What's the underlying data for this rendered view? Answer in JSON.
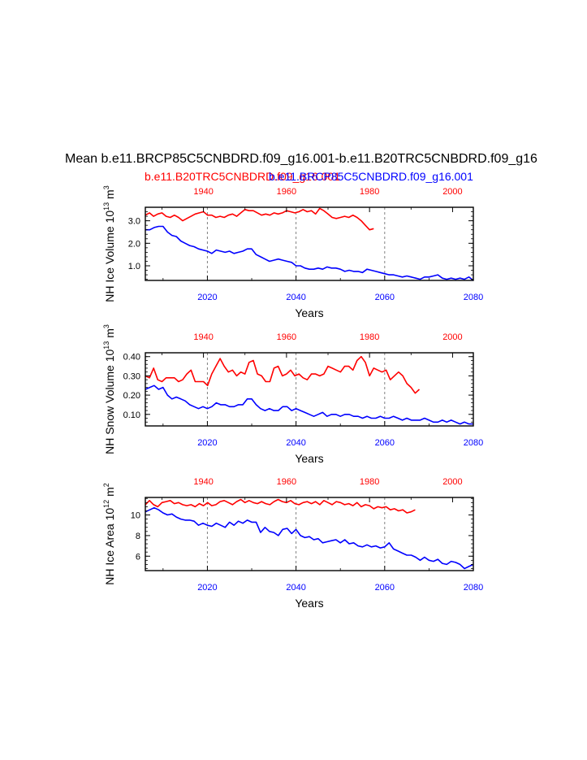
{
  "title": "Mean b.e11.BRCP85C5CNBDRD.f09_g16.001-b.e11.B20TRC5CNBDRD.f09_g16",
  "legend": {
    "red_label": "b.e11.B20TRC5CNBDRD.f09_g16.001",
    "blue_label": "b.e11.BRCP85C5CNBDRD.f09_g16.001"
  },
  "colors": {
    "red": "#ff0000",
    "blue": "#0000ff",
    "axis": "#000000",
    "refline": "#808080"
  },
  "chart_data": [
    {
      "type": "line",
      "ylabel": "NH Ice Volume",
      "ylabel_factor": "10",
      "ylabel_exp": "13",
      "ylabel_unit": "m",
      "ylabel_unit_exp": "3",
      "xlabel": "Years",
      "xlim_bottom": [
        2006,
        2080
      ],
      "xlim_top": [
        1926,
        2005
      ],
      "ylim": [
        0.35,
        3.6
      ],
      "yticks": [
        1.0,
        2.0,
        3.0
      ],
      "ytick_labels": [
        "1.0",
        "2.0",
        "3.0"
      ],
      "bottom_ticks": [
        2020,
        2040,
        2060,
        2080
      ],
      "top_ticks": [
        1940,
        1960,
        1980,
        2000
      ],
      "reflines_x": [
        2020,
        2040,
        2060
      ],
      "series": [
        {
          "name": "b.e11.B20TRC5CNBDRD.f09_g16.001",
          "axis": "top",
          "color": "red",
          "x0": 1926,
          "values": [
            3.25,
            3.35,
            3.2,
            3.3,
            3.35,
            3.2,
            3.15,
            3.25,
            3.15,
            3.0,
            3.1,
            3.2,
            3.3,
            3.35,
            3.4,
            3.25,
            3.25,
            3.15,
            3.2,
            3.15,
            3.25,
            3.3,
            3.2,
            3.35,
            3.5,
            3.45,
            3.45,
            3.35,
            3.25,
            3.3,
            3.25,
            3.35,
            3.3,
            3.35,
            3.45,
            3.4,
            3.35,
            3.4,
            3.5,
            3.4,
            3.45,
            3.3,
            3.55,
            3.45,
            3.3,
            3.15,
            3.1,
            3.15,
            3.2,
            3.15,
            3.25,
            3.15,
            3.0,
            2.8,
            2.6,
            2.65
          ]
        },
        {
          "name": "b.e11.BRCP85C5CNBDRD.f09_g16.001",
          "axis": "bottom",
          "color": "blue",
          "x0": 2006,
          "values": [
            2.6,
            2.6,
            2.7,
            2.75,
            2.75,
            2.5,
            2.35,
            2.3,
            2.1,
            2.0,
            1.9,
            1.85,
            1.75,
            1.7,
            1.65,
            1.55,
            1.7,
            1.65,
            1.6,
            1.65,
            1.55,
            1.6,
            1.65,
            1.75,
            1.75,
            1.5,
            1.4,
            1.3,
            1.2,
            1.25,
            1.3,
            1.25,
            1.2,
            1.15,
            1.0,
            1.0,
            0.9,
            0.85,
            0.85,
            0.9,
            0.85,
            0.95,
            0.9,
            0.9,
            0.85,
            0.75,
            0.8,
            0.75,
            0.75,
            0.7,
            0.85,
            0.8,
            0.75,
            0.7,
            0.65,
            0.6,
            0.6,
            0.55,
            0.5,
            0.55,
            0.5,
            0.45,
            0.4,
            0.5,
            0.5,
            0.55,
            0.6,
            0.45,
            0.4,
            0.45,
            0.4,
            0.45,
            0.4,
            0.5,
            0.35
          ]
        }
      ]
    },
    {
      "type": "line",
      "ylabel": "NH Snow Volume",
      "ylabel_factor": "10",
      "ylabel_exp": "13",
      "ylabel_unit": "m",
      "ylabel_unit_exp": "3",
      "xlabel": "Years",
      "xlim_bottom": [
        2006,
        2080
      ],
      "xlim_top": [
        1926,
        2005
      ],
      "ylim": [
        0.04,
        0.42
      ],
      "yticks": [
        0.1,
        0.2,
        0.3,
        0.4
      ],
      "ytick_labels": [
        "0.10",
        "0.20",
        "0.30",
        "0.40"
      ],
      "bottom_ticks": [
        2020,
        2040,
        2060,
        2080
      ],
      "top_ticks": [
        1940,
        1960,
        1980,
        2000
      ],
      "reflines_x": [
        2020,
        2040,
        2060
      ],
      "series": [
        {
          "name": "b.e11.B20TRC5CNBDRD.f09_g16.001",
          "axis": "top",
          "color": "red",
          "x0": 1926,
          "values": [
            0.3,
            0.29,
            0.34,
            0.28,
            0.27,
            0.29,
            0.29,
            0.29,
            0.27,
            0.28,
            0.31,
            0.33,
            0.27,
            0.27,
            0.27,
            0.25,
            0.31,
            0.35,
            0.39,
            0.35,
            0.32,
            0.33,
            0.3,
            0.32,
            0.31,
            0.37,
            0.38,
            0.31,
            0.3,
            0.27,
            0.27,
            0.34,
            0.35,
            0.3,
            0.31,
            0.33,
            0.3,
            0.31,
            0.29,
            0.28,
            0.31,
            0.31,
            0.3,
            0.31,
            0.35,
            0.34,
            0.33,
            0.32,
            0.35,
            0.35,
            0.33,
            0.38,
            0.4,
            0.37,
            0.3,
            0.34,
            0.33,
            0.32,
            0.33,
            0.28,
            0.3,
            0.32,
            0.3,
            0.26,
            0.24,
            0.21,
            0.23
          ]
        },
        {
          "name": "b.e11.BRCP85C5CNBDRD.f09_g16.001",
          "axis": "bottom",
          "color": "blue",
          "x0": 2006,
          "values": [
            0.23,
            0.24,
            0.25,
            0.23,
            0.24,
            0.2,
            0.18,
            0.19,
            0.18,
            0.17,
            0.15,
            0.14,
            0.13,
            0.14,
            0.13,
            0.14,
            0.16,
            0.15,
            0.15,
            0.14,
            0.14,
            0.15,
            0.15,
            0.18,
            0.18,
            0.15,
            0.13,
            0.12,
            0.13,
            0.12,
            0.12,
            0.14,
            0.14,
            0.12,
            0.13,
            0.12,
            0.11,
            0.1,
            0.09,
            0.1,
            0.11,
            0.09,
            0.1,
            0.1,
            0.09,
            0.1,
            0.1,
            0.09,
            0.09,
            0.08,
            0.09,
            0.08,
            0.08,
            0.09,
            0.08,
            0.08,
            0.09,
            0.08,
            0.07,
            0.08,
            0.07,
            0.07,
            0.07,
            0.08,
            0.07,
            0.06,
            0.06,
            0.07,
            0.06,
            0.07,
            0.06,
            0.05,
            0.06,
            0.05,
            0.05
          ]
        }
      ]
    },
    {
      "type": "line",
      "ylabel": "NH Ice Area",
      "ylabel_factor": "10",
      "ylabel_exp": "12",
      "ylabel_unit": "m",
      "ylabel_unit_exp": "2",
      "xlabel": "Years",
      "xlim_bottom": [
        2006,
        2080
      ],
      "xlim_top": [
        1926,
        2005
      ],
      "ylim": [
        4.6,
        11.7
      ],
      "yticks": [
        6,
        8,
        10
      ],
      "ytick_labels": [
        "6",
        "8",
        "10"
      ],
      "bottom_ticks": [
        2020,
        2040,
        2060,
        2080
      ],
      "top_ticks": [
        1940,
        1960,
        1980,
        2000
      ],
      "reflines_x": [
        2020,
        2040,
        2060
      ],
      "series": [
        {
          "name": "b.e11.B20TRC5CNBDRD.f09_g16.001",
          "axis": "top",
          "color": "red",
          "x0": 1926,
          "values": [
            11.0,
            11.4,
            11.0,
            10.8,
            11.2,
            11.3,
            11.4,
            11.1,
            11.2,
            11.0,
            10.9,
            11.0,
            10.8,
            11.1,
            10.9,
            11.2,
            10.9,
            11.0,
            11.3,
            11.4,
            11.2,
            11.0,
            11.3,
            11.5,
            11.2,
            11.4,
            11.2,
            11.1,
            11.3,
            11.1,
            11.0,
            11.3,
            11.5,
            11.3,
            11.2,
            11.4,
            11.1,
            11.0,
            11.2,
            11.3,
            11.1,
            11.3,
            11.0,
            11.4,
            11.2,
            11.0,
            11.3,
            11.2,
            11.0,
            11.1,
            10.9,
            11.2,
            10.8,
            11.0,
            10.9,
            10.6,
            10.8,
            10.7,
            10.8,
            10.5,
            10.6,
            10.4,
            10.5,
            10.2,
            10.3,
            10.5
          ]
        },
        {
          "name": "b.e11.BRCP85C5CNBDRD.f09_g16.001",
          "axis": "bottom",
          "color": "blue",
          "x0": 2006,
          "values": [
            10.3,
            10.5,
            10.7,
            10.5,
            10.2,
            10.0,
            10.1,
            9.8,
            9.6,
            9.5,
            9.5,
            9.4,
            9.0,
            9.2,
            9.0,
            8.9,
            9.2,
            9.0,
            8.8,
            9.3,
            9.0,
            9.4,
            9.2,
            9.5,
            9.3,
            9.3,
            8.3,
            8.8,
            8.4,
            8.3,
            8.0,
            8.6,
            8.7,
            8.2,
            8.6,
            8.0,
            7.8,
            7.9,
            7.6,
            7.7,
            7.3,
            7.4,
            7.5,
            7.6,
            7.3,
            7.6,
            7.2,
            7.3,
            7.0,
            6.9,
            7.1,
            6.9,
            7.0,
            6.8,
            6.9,
            7.3,
            6.7,
            6.5,
            6.3,
            6.1,
            6.1,
            5.9,
            5.6,
            5.9,
            5.6,
            5.5,
            5.7,
            5.3,
            5.2,
            5.5,
            5.4,
            5.2,
            4.8,
            5.0,
            5.2
          ]
        }
      ]
    }
  ]
}
